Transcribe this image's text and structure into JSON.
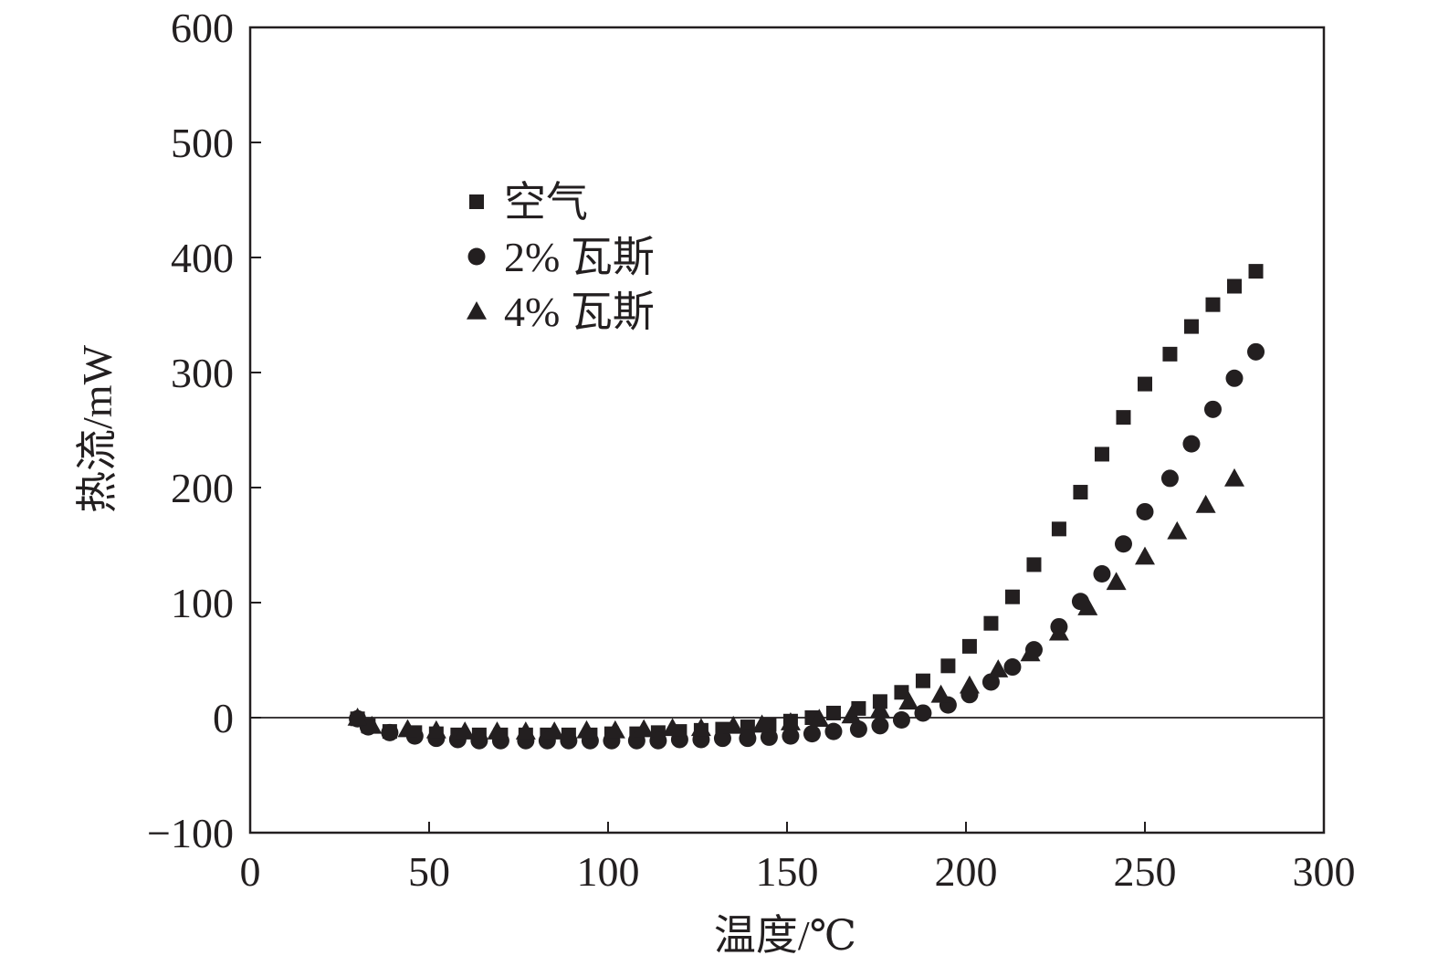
{
  "chart_data": {
    "type": "scatter",
    "title": "",
    "xlabel": "温度/℃",
    "ylabel": "热流/mW",
    "xlim": [
      0,
      300
    ],
    "ylim": [
      -100,
      600
    ],
    "xticks": [
      0,
      50,
      100,
      150,
      200,
      250,
      300
    ],
    "yticks": [
      -100,
      0,
      100,
      200,
      300,
      400,
      500,
      600
    ],
    "xtick_labels": [
      "0",
      "50",
      "100",
      "150",
      "200",
      "250",
      "300"
    ],
    "ytick_labels": [
      "−100",
      "0",
      "100",
      "200",
      "300",
      "400",
      "500",
      "600"
    ],
    "zero_line": true,
    "grid": false,
    "legend_position": "upper-left",
    "series": [
      {
        "name": "空气",
        "marker": "square",
        "color": "#231f20",
        "x": [
          30,
          33,
          39,
          46,
          52,
          58,
          64,
          70,
          77,
          83,
          89,
          95,
          101,
          108,
          114,
          120,
          126,
          132,
          139,
          145,
          151,
          157,
          163,
          170,
          176,
          182,
          188,
          195,
          201,
          207,
          213,
          219,
          226,
          232,
          238,
          244,
          250,
          257,
          263,
          269,
          275,
          281
        ],
        "y": [
          -1,
          -7,
          -12,
          -13,
          -14,
          -15,
          -15,
          -15,
          -15,
          -15,
          -15,
          -15,
          -14,
          -14,
          -13,
          -12,
          -11,
          -10,
          -8,
          -6,
          -3,
          0,
          4,
          8,
          14,
          22,
          32,
          45,
          62,
          82,
          105,
          133,
          164,
          196,
          229,
          261,
          290,
          316,
          340,
          359,
          375,
          388
        ]
      },
      {
        "name": "2% 瓦斯",
        "marker": "circle",
        "color": "#231f20",
        "x": [
          30,
          33,
          39,
          46,
          52,
          58,
          64,
          70,
          77,
          83,
          89,
          95,
          101,
          108,
          114,
          120,
          126,
          132,
          139,
          145,
          151,
          157,
          163,
          170,
          176,
          182,
          188,
          195,
          201,
          207,
          213,
          219,
          226,
          232,
          238,
          244,
          250,
          257,
          263,
          269,
          275,
          281
        ],
        "y": [
          -1,
          -8,
          -13,
          -16,
          -18,
          -19,
          -20,
          -20,
          -20,
          -20,
          -20,
          -20,
          -20,
          -20,
          -20,
          -19,
          -19,
          -18,
          -18,
          -17,
          -16,
          -14,
          -12,
          -10,
          -7,
          -2,
          4,
          11,
          20,
          31,
          44,
          59,
          79,
          101,
          125,
          151,
          179,
          208,
          238,
          268,
          295,
          318
        ]
      },
      {
        "name": "4% 瓦斯",
        "marker": "triangle",
        "color": "#231f20",
        "x": [
          30,
          34,
          44,
          52,
          60,
          69,
          77,
          85,
          94,
          102,
          110,
          118,
          126,
          135,
          143,
          151,
          159,
          168,
          176,
          184,
          193,
          201,
          209,
          218,
          226,
          234,
          242,
          250,
          259,
          267,
          275
        ],
        "y": [
          0,
          -7,
          -10,
          -11,
          -12,
          -12,
          -12,
          -12,
          -11,
          -11,
          -10,
          -9,
          -9,
          -7,
          -6,
          -4,
          -1,
          2,
          7,
          14,
          20,
          28,
          42,
          56,
          74,
          96,
          118,
          140,
          162,
          185,
          208
        ]
      }
    ]
  }
}
